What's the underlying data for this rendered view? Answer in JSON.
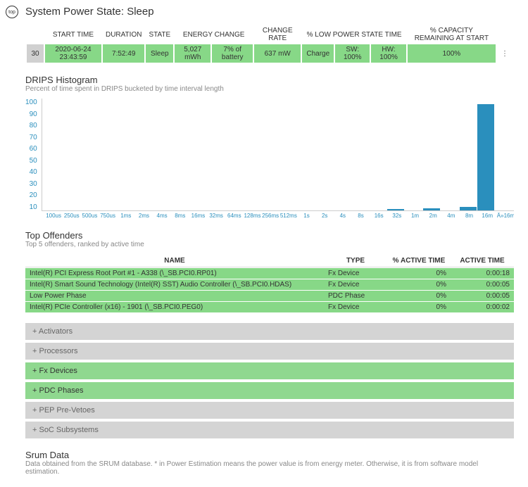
{
  "title": "System Power State: Sleep",
  "topIcon": "top",
  "stateTable": {
    "headers": [
      "START TIME",
      "DURATION",
      "STATE",
      "ENERGY CHANGE",
      "CHANGE RATE",
      "% LOW POWER STATE TIME",
      "% CAPACITY REMAINING AT START"
    ],
    "idx": "30",
    "cells": [
      "2020-06-24  23:43:59",
      "7:52:49",
      "Sleep",
      "5,027 mWh",
      "7% of battery",
      "637 mW",
      "Charge",
      "SW: 100%",
      "HW: 100%",
      "100%"
    ]
  },
  "drips": {
    "title": "DRIPS Histogram",
    "sub": "Percent of time spent in DRIPS bucketed by time interval length",
    "yticks": [
      "100",
      "90",
      "80",
      "70",
      "60",
      "50",
      "40",
      "30",
      "20",
      "10"
    ],
    "xlabels": [
      "100us",
      "250us",
      "500us",
      "750us",
      "1ms",
      "2ms",
      "4ms",
      "8ms",
      "16ms",
      "32ms",
      "64ms",
      "128ms",
      "256ms",
      "512ms",
      "1s",
      "2s",
      "4s",
      "8s",
      "16s",
      "32s",
      "1m",
      "2m",
      "4m",
      "8m",
      "16m",
      "Â»16m"
    ],
    "values": [
      0,
      0,
      0,
      0,
      0,
      0,
      0,
      0,
      0,
      0,
      0,
      0,
      0,
      0,
      0,
      0,
      0,
      0,
      0,
      1,
      0,
      2,
      0,
      3,
      95,
      0
    ],
    "barColor": "#2a8fbd",
    "ymax": 100
  },
  "offenders": {
    "title": "Top Offenders",
    "sub": "Top 5 offenders, ranked by active time",
    "headers": [
      "NAME",
      "TYPE",
      "% ACTIVE TIME",
      "ACTIVE TIME"
    ],
    "rows": [
      [
        "Intel(R) PCI Express Root Port #1 - A338 (\\_SB.PCI0.RP01)",
        "Fx Device",
        "0%",
        "0:00:18"
      ],
      [
        "Intel(R) Smart Sound Technology (Intel(R) SST) Audio Controller (\\_SB.PCI0.HDAS)",
        "Fx Device",
        "0%",
        "0:00:05"
      ],
      [
        "Low Power Phase",
        "PDC Phase",
        "0%",
        "0:00:05"
      ],
      [
        "Intel(R) PCIe Controller (x16) - 1901 (\\_SB.PCI0.PEG0)",
        "Fx Device",
        "0%",
        "0:00:02"
      ]
    ]
  },
  "accordion": [
    {
      "label": "+  Activators",
      "cls": "acc-gray"
    },
    {
      "label": "+  Processors",
      "cls": "acc-gray"
    },
    {
      "label": "+  Fx Devices",
      "cls": "acc-green"
    },
    {
      "label": "+  PDC Phases",
      "cls": "acc-green"
    },
    {
      "label": "+  PEP Pre-Vetoes",
      "cls": "acc-gray"
    },
    {
      "label": "+  SoC Subsystems",
      "cls": "acc-gray"
    }
  ],
  "srum": {
    "title": "Srum Data",
    "sub": "Data obtained from the SRUM database. * in Power Estimation means the power value is from energy meter. Otherwise, it is from software model estimation."
  }
}
